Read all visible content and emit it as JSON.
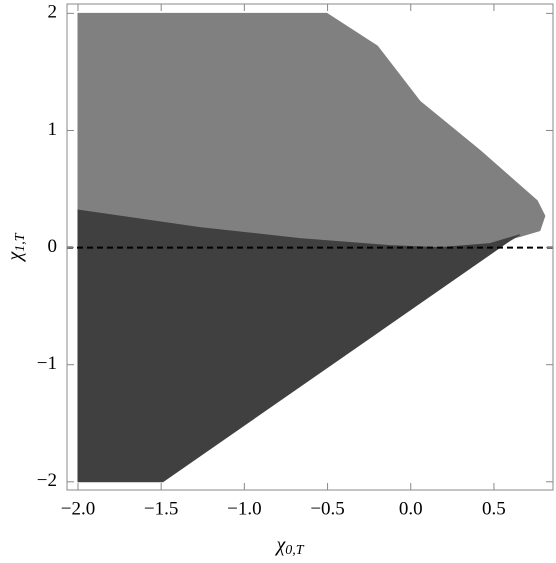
{
  "chart_data": {
    "type": "region",
    "xlabel": {
      "symbol": "χ",
      "sub": "0,T"
    },
    "ylabel": {
      "symbol": "χ",
      "sub": "1,T"
    },
    "xlim": [
      -2.066,
      0.855
    ],
    "ylim": [
      -2.07,
      2.08
    ],
    "xticks": [
      {
        "value": -2.0,
        "label": "−2.0"
      },
      {
        "value": -1.5,
        "label": "−1.5"
      },
      {
        "value": -1.0,
        "label": "−1.0"
      },
      {
        "value": -0.5,
        "label": "−0.5"
      },
      {
        "value": 0.0,
        "label": "0.0"
      },
      {
        "value": 0.5,
        "label": "0.5"
      }
    ],
    "yticks": [
      {
        "value": -2,
        "label": "−2"
      },
      {
        "value": -1,
        "label": "−1"
      },
      0,
      1,
      2
    ],
    "hline": 0,
    "series": [
      {
        "color": "#808080",
        "x": [
          -2,
          -0.504,
          -0.2,
          0.055,
          0.416,
          0.656,
          0.76,
          0.806,
          0.776,
          0.656,
          0.476,
          0.176,
          -0.125,
          -0.666,
          -1.267,
          -2
        ],
        "values": [
          2,
          2,
          1.72,
          1.25,
          0.83,
          0.53,
          0.4,
          0.27,
          0.145,
          0.094,
          0.034,
          0.0,
          0.017,
          0.077,
          0.17,
          0.32
        ]
      },
      {
        "color": "#404040",
        "x": [
          -2,
          -2,
          -1.49,
          0.596,
          0.656,
          0.476,
          0.176,
          -0.125,
          -0.666,
          -1.267
        ],
        "values": [
          0.32,
          -2,
          -2,
          0.06,
          0.11,
          0.034,
          0.0,
          0.017,
          0.077,
          0.17
        ]
      }
    ]
  }
}
